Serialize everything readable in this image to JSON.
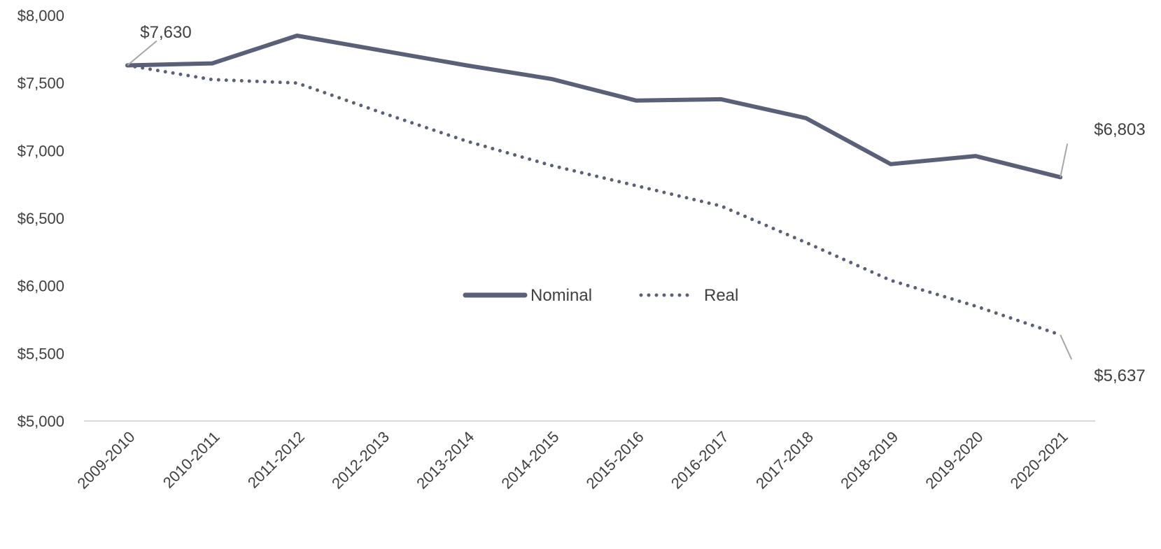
{
  "chart_data": {
    "type": "line",
    "categories": [
      "2009-2010",
      "2010-2011",
      "2011-2012",
      "2012-2013",
      "2013-2014",
      "2014-2015",
      "2015-2016",
      "2016-2017",
      "2017-2018",
      "2018-2019",
      "2019-2020",
      "2020-2021"
    ],
    "series": [
      {
        "name": "Nominal",
        "style": "solid",
        "color": "#5a6078",
        "values": [
          7630,
          7645,
          7850,
          7740,
          7630,
          7530,
          7370,
          7380,
          7240,
          6900,
          6960,
          6803
        ]
      },
      {
        "name": "Real",
        "style": "dotted",
        "color": "#5a6078",
        "values": [
          7630,
          7525,
          7500,
          7280,
          7070,
          6890,
          6740,
          6590,
          6320,
          6040,
          5850,
          5637
        ]
      }
    ],
    "ylim": [
      5000,
      8000
    ],
    "yticks": [
      5000,
      5500,
      6000,
      6500,
      7000,
      7500,
      8000
    ],
    "ytick_labels": [
      "$5,000",
      "$5,500",
      "$6,000",
      "$6,500",
      "$7,000",
      "$7,500",
      "$8,000"
    ],
    "annotations": [
      {
        "series": "Nominal",
        "index": 0,
        "text": "$7,630"
      },
      {
        "series": "Nominal",
        "index": 11,
        "text": "$6,803"
      },
      {
        "series": "Real",
        "index": 11,
        "text": "$5,637"
      }
    ],
    "grid": false,
    "legend": "center",
    "axis_line_color": "#d9d9d9"
  }
}
